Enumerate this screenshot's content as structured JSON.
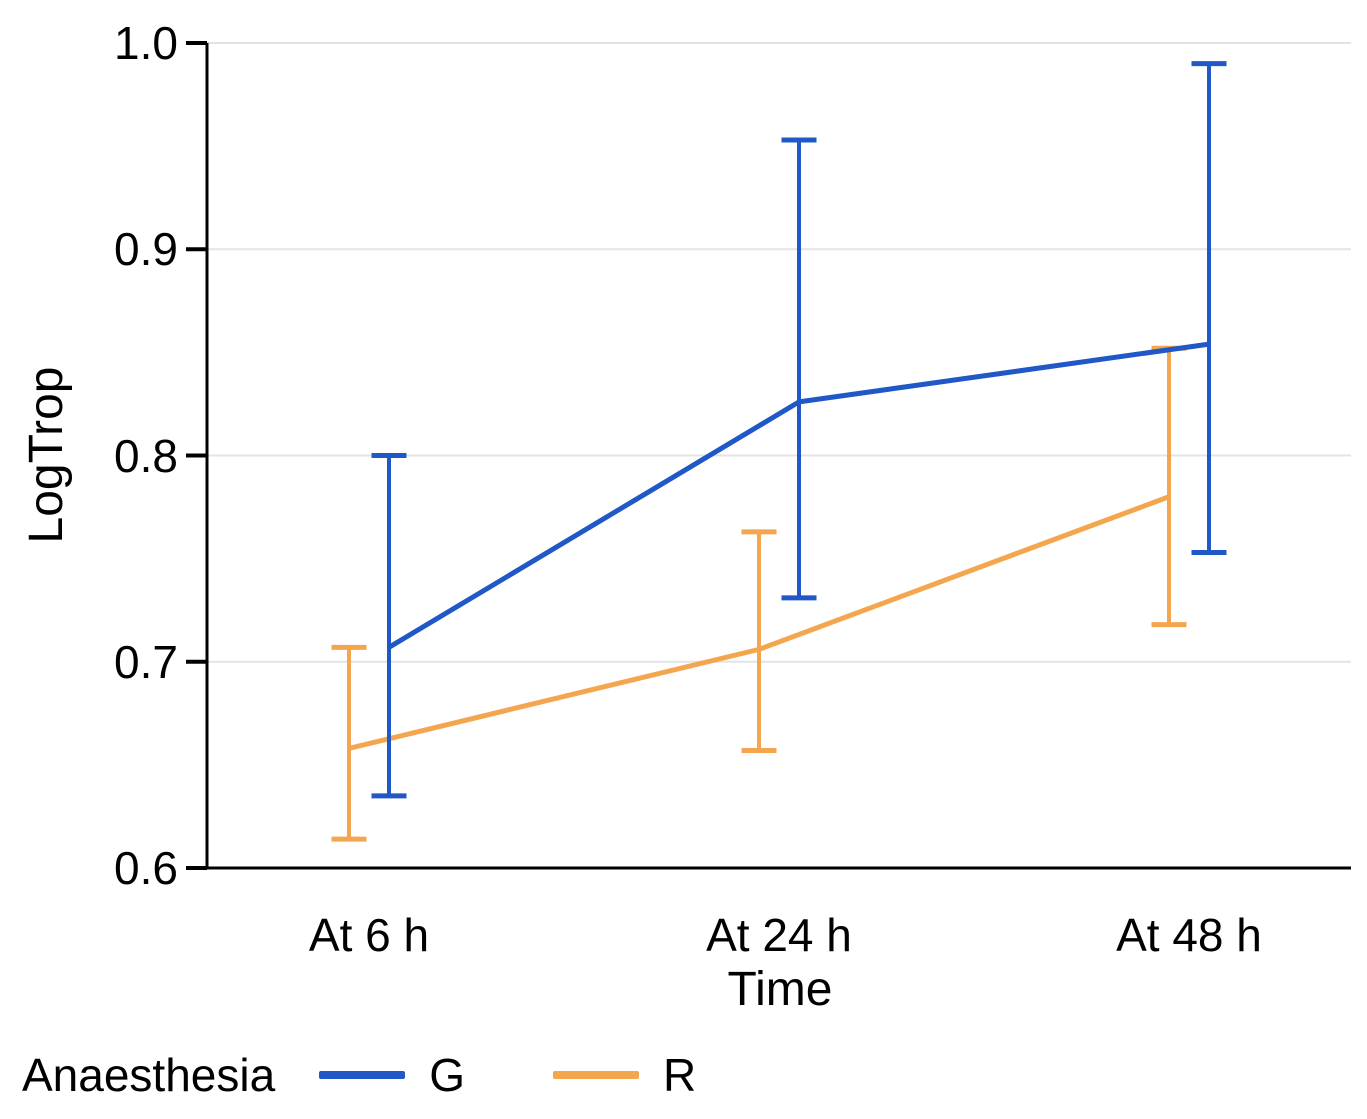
{
  "chart_data": {
    "type": "line",
    "title": "",
    "xlabel": "Time",
    "ylabel": "LogTrop",
    "categories": [
      "At 6 h",
      "At 24 h",
      "At 48 h"
    ],
    "ylim": [
      0.6,
      1.0
    ],
    "yticks": [
      1.0,
      0.9,
      0.8,
      0.7,
      0.6
    ],
    "ytick_labels": [
      "1.0",
      "0.9",
      "0.8",
      "0.7",
      "0.6"
    ],
    "grid": true,
    "error_bars": "shown",
    "legend_title": "Anaesthesia",
    "legend_position": "bottom-left",
    "series": [
      {
        "name": "G",
        "color": "#2058C8",
        "values": [
          0.707,
          0.826,
          0.854
        ],
        "ci_low": [
          0.635,
          0.731,
          0.753
        ],
        "ci_high": [
          0.8,
          0.953,
          0.99
        ]
      },
      {
        "name": "R",
        "color": "#F4A64F",
        "values": [
          0.658,
          0.706,
          0.78
        ],
        "ci_low": [
          0.614,
          0.657,
          0.718
        ],
        "ci_high": [
          0.707,
          0.763,
          0.852
        ]
      }
    ],
    "colors": {
      "grid": "#E4E4E4",
      "axis": "#000000",
      "text": "#000000"
    }
  }
}
